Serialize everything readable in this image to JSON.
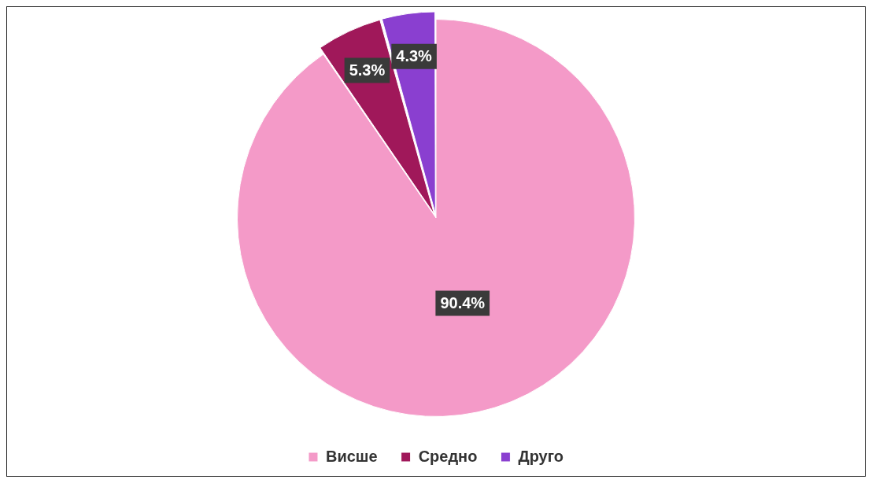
{
  "chart_data": {
    "type": "pie",
    "categories": [
      "Висше",
      "Средно",
      "Друго"
    ],
    "values": [
      90.4,
      5.3,
      4.3
    ],
    "colors": [
      "#f49ac8",
      "#a0185a",
      "#8a3fd0"
    ],
    "value_labels": [
      "90.4%",
      "5.3%",
      "4.3%"
    ],
    "legend": "bottom"
  }
}
